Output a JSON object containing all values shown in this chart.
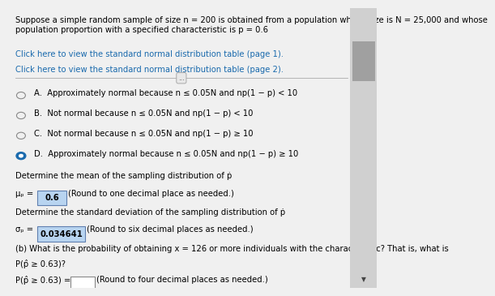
{
  "bg_color": "#f0f0f0",
  "header_text": "Suppose a simple random sample of size n = 200 is obtained from a population whose size is N = 25,000 and whose\npopulation proportion with a specified characteristic is p = 0.6",
  "link1": "Click here to view the standard normal distribution table (page 1).",
  "link2": "Click here to view the standard normal distribution table (page 2).",
  "options": [
    {
      "label": "A.",
      "text": "Approximately normal because n ≤ 0.05N and np(1 − p) < 10",
      "selected": false
    },
    {
      "label": "B.",
      "text": "Not normal because n ≤ 0.05N and np(1 − p) < 10",
      "selected": false
    },
    {
      "label": "C.",
      "text": "Not normal because n ≤ 0.05N and np(1 − p) ≥ 10",
      "selected": false
    },
    {
      "label": "D.",
      "text": "Approximately normal because n ≤ 0.05N and np(1 − p) ≥ 10",
      "selected": true
    }
  ],
  "mean_label": "μₚ = ",
  "mean_value": "0.6",
  "mean_note": "(Round to one decimal place as needed.)",
  "std_label": "σₚ = ",
  "std_value": "0.034641",
  "std_note": "(Round to six decimal places as needed.)",
  "part_b_line1": "(b) What is the probability of obtaining x = 126 or more individuals with the characteristic? That is, what is",
  "part_b_line2": "P(p̂ ≥ 0.63)?",
  "part_b_answer_label": "P(p̂ ≥ 0.63) = ",
  "part_b_note": "(Round to four decimal places as needed.)",
  "ellipsis": "...",
  "text_color": "#000000",
  "link_color": "#1a6aad",
  "highlight_color": "#b8d4f0",
  "header_fontsize": 7.2,
  "body_fontsize": 7.2
}
